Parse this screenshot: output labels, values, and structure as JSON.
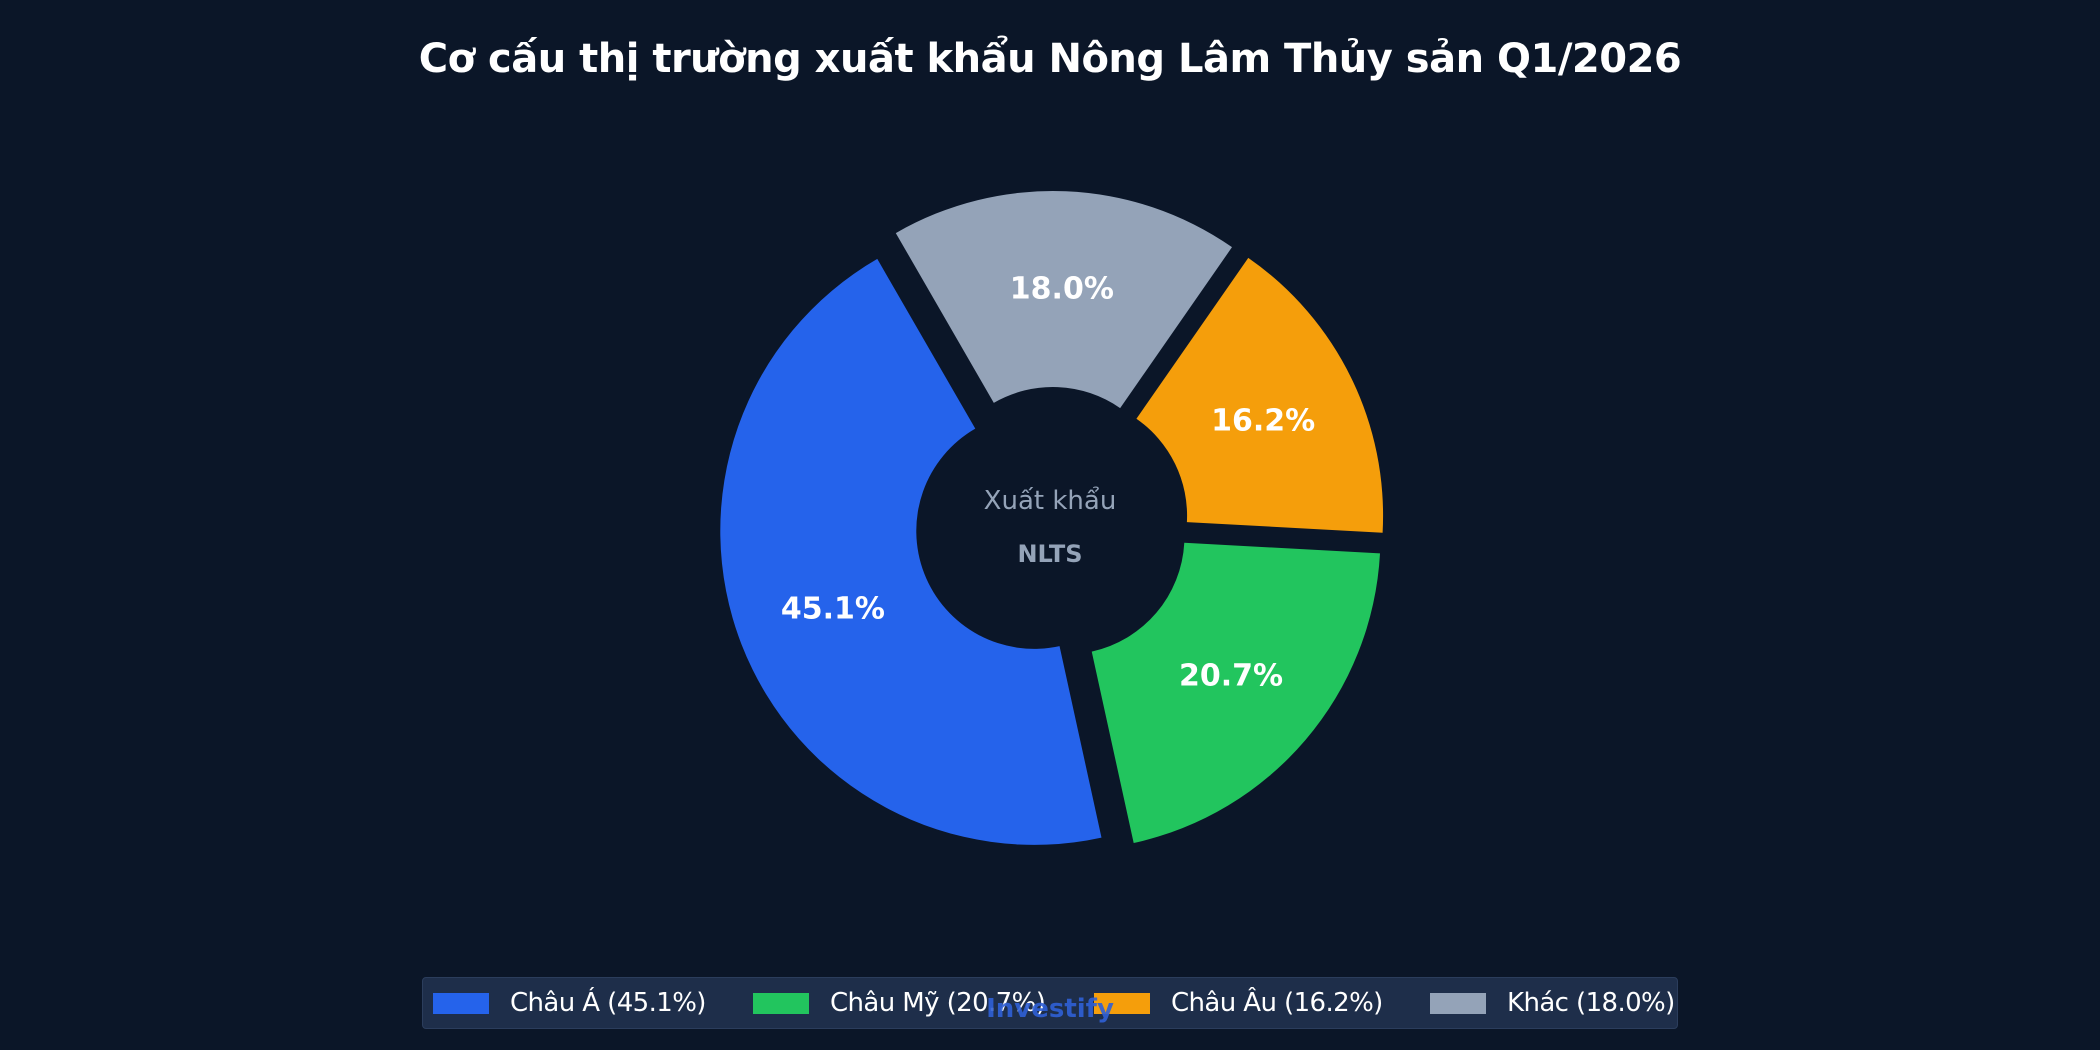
{
  "title": "Cơ cấu thị trường xuất khẩu Nông Lâm Thủy sản Q1/2026",
  "center_label": {
    "line1": "Xuất khẩu",
    "line2": "NLTS"
  },
  "watermark": "Investify",
  "colors": {
    "background": "#0b1628",
    "legend_bg": "#1e2e4a",
    "text": "#ffffff",
    "muted_text": "#94a3b8"
  },
  "legend": {
    "items": [
      {
        "label": "Châu Á (45.1%)",
        "color": "#2563eb"
      },
      {
        "label": "Châu Mỹ (20.7%)",
        "color": "#22c55e"
      },
      {
        "label": "Châu Âu (16.2%)",
        "color": "#f59e0b"
      },
      {
        "label": "Khác (18.0%)",
        "color": "#94a3b8"
      }
    ]
  },
  "chart_data": {
    "type": "pie",
    "subtype": "donut",
    "title": "Cơ cấu thị trường xuất khẩu Nông Lâm Thủy sản Q1/2026",
    "categories": [
      "Châu Á",
      "Châu Mỹ",
      "Châu Âu",
      "Khác"
    ],
    "values": [
      45.1,
      20.7,
      16.2,
      18.0
    ],
    "unit": "%",
    "labels": [
      "45.1%",
      "20.7%",
      "16.2%",
      "18.0%"
    ],
    "colors": [
      "#2563eb",
      "#22c55e",
      "#f59e0b",
      "#94a3b8"
    ],
    "hole_text": [
      "Xuất khẩu",
      "NLTS"
    ],
    "legend_position": "bottom",
    "exploded": true,
    "start_angle_deg": 240,
    "direction": "counterclockwise"
  }
}
